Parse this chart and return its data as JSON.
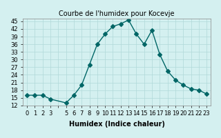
{
  "x": [
    0,
    1,
    2,
    3,
    5,
    6,
    7,
    8,
    9,
    10,
    11,
    12,
    13,
    14,
    15,
    16,
    17,
    18,
    19,
    20,
    21,
    22,
    23
  ],
  "y": [
    16,
    16,
    16,
    14.5,
    13,
    16,
    20,
    28,
    36,
    40,
    43,
    44,
    45.5,
    40,
    36,
    41.5,
    32,
    25.5,
    22,
    20,
    18.5,
    18,
    16.5
  ],
  "title": "Courbe de l'humidex pour Kocevje",
  "xlabel": "Humidex (Indice chaleur)",
  "line_color": "#006666",
  "marker": "D",
  "marker_size": 3,
  "bg_color": "#d4f0f0",
  "grid_color": "#b0d8d8",
  "ylim": [
    12,
    46
  ],
  "xlim": [
    -0.5,
    23.5
  ],
  "yticks": [
    12,
    15,
    18,
    21,
    24,
    27,
    30,
    33,
    36,
    39,
    42,
    45
  ],
  "xticks": [
    0,
    1,
    2,
    3,
    4,
    5,
    6,
    7,
    8,
    9,
    10,
    11,
    12,
    13,
    14,
    15,
    16,
    17,
    18,
    19,
    20,
    21,
    22,
    23
  ],
  "xtick_labels": [
    "0",
    "1",
    "2",
    "3",
    "",
    "5",
    "6",
    "7",
    "8",
    "9",
    "10",
    "11",
    "12",
    "13",
    "14",
    "15",
    "16",
    "17",
    "18",
    "19",
    "20",
    "21",
    "22",
    "23"
  ],
  "title_fontsize": 7,
  "label_fontsize": 7,
  "tick_fontsize": 6
}
